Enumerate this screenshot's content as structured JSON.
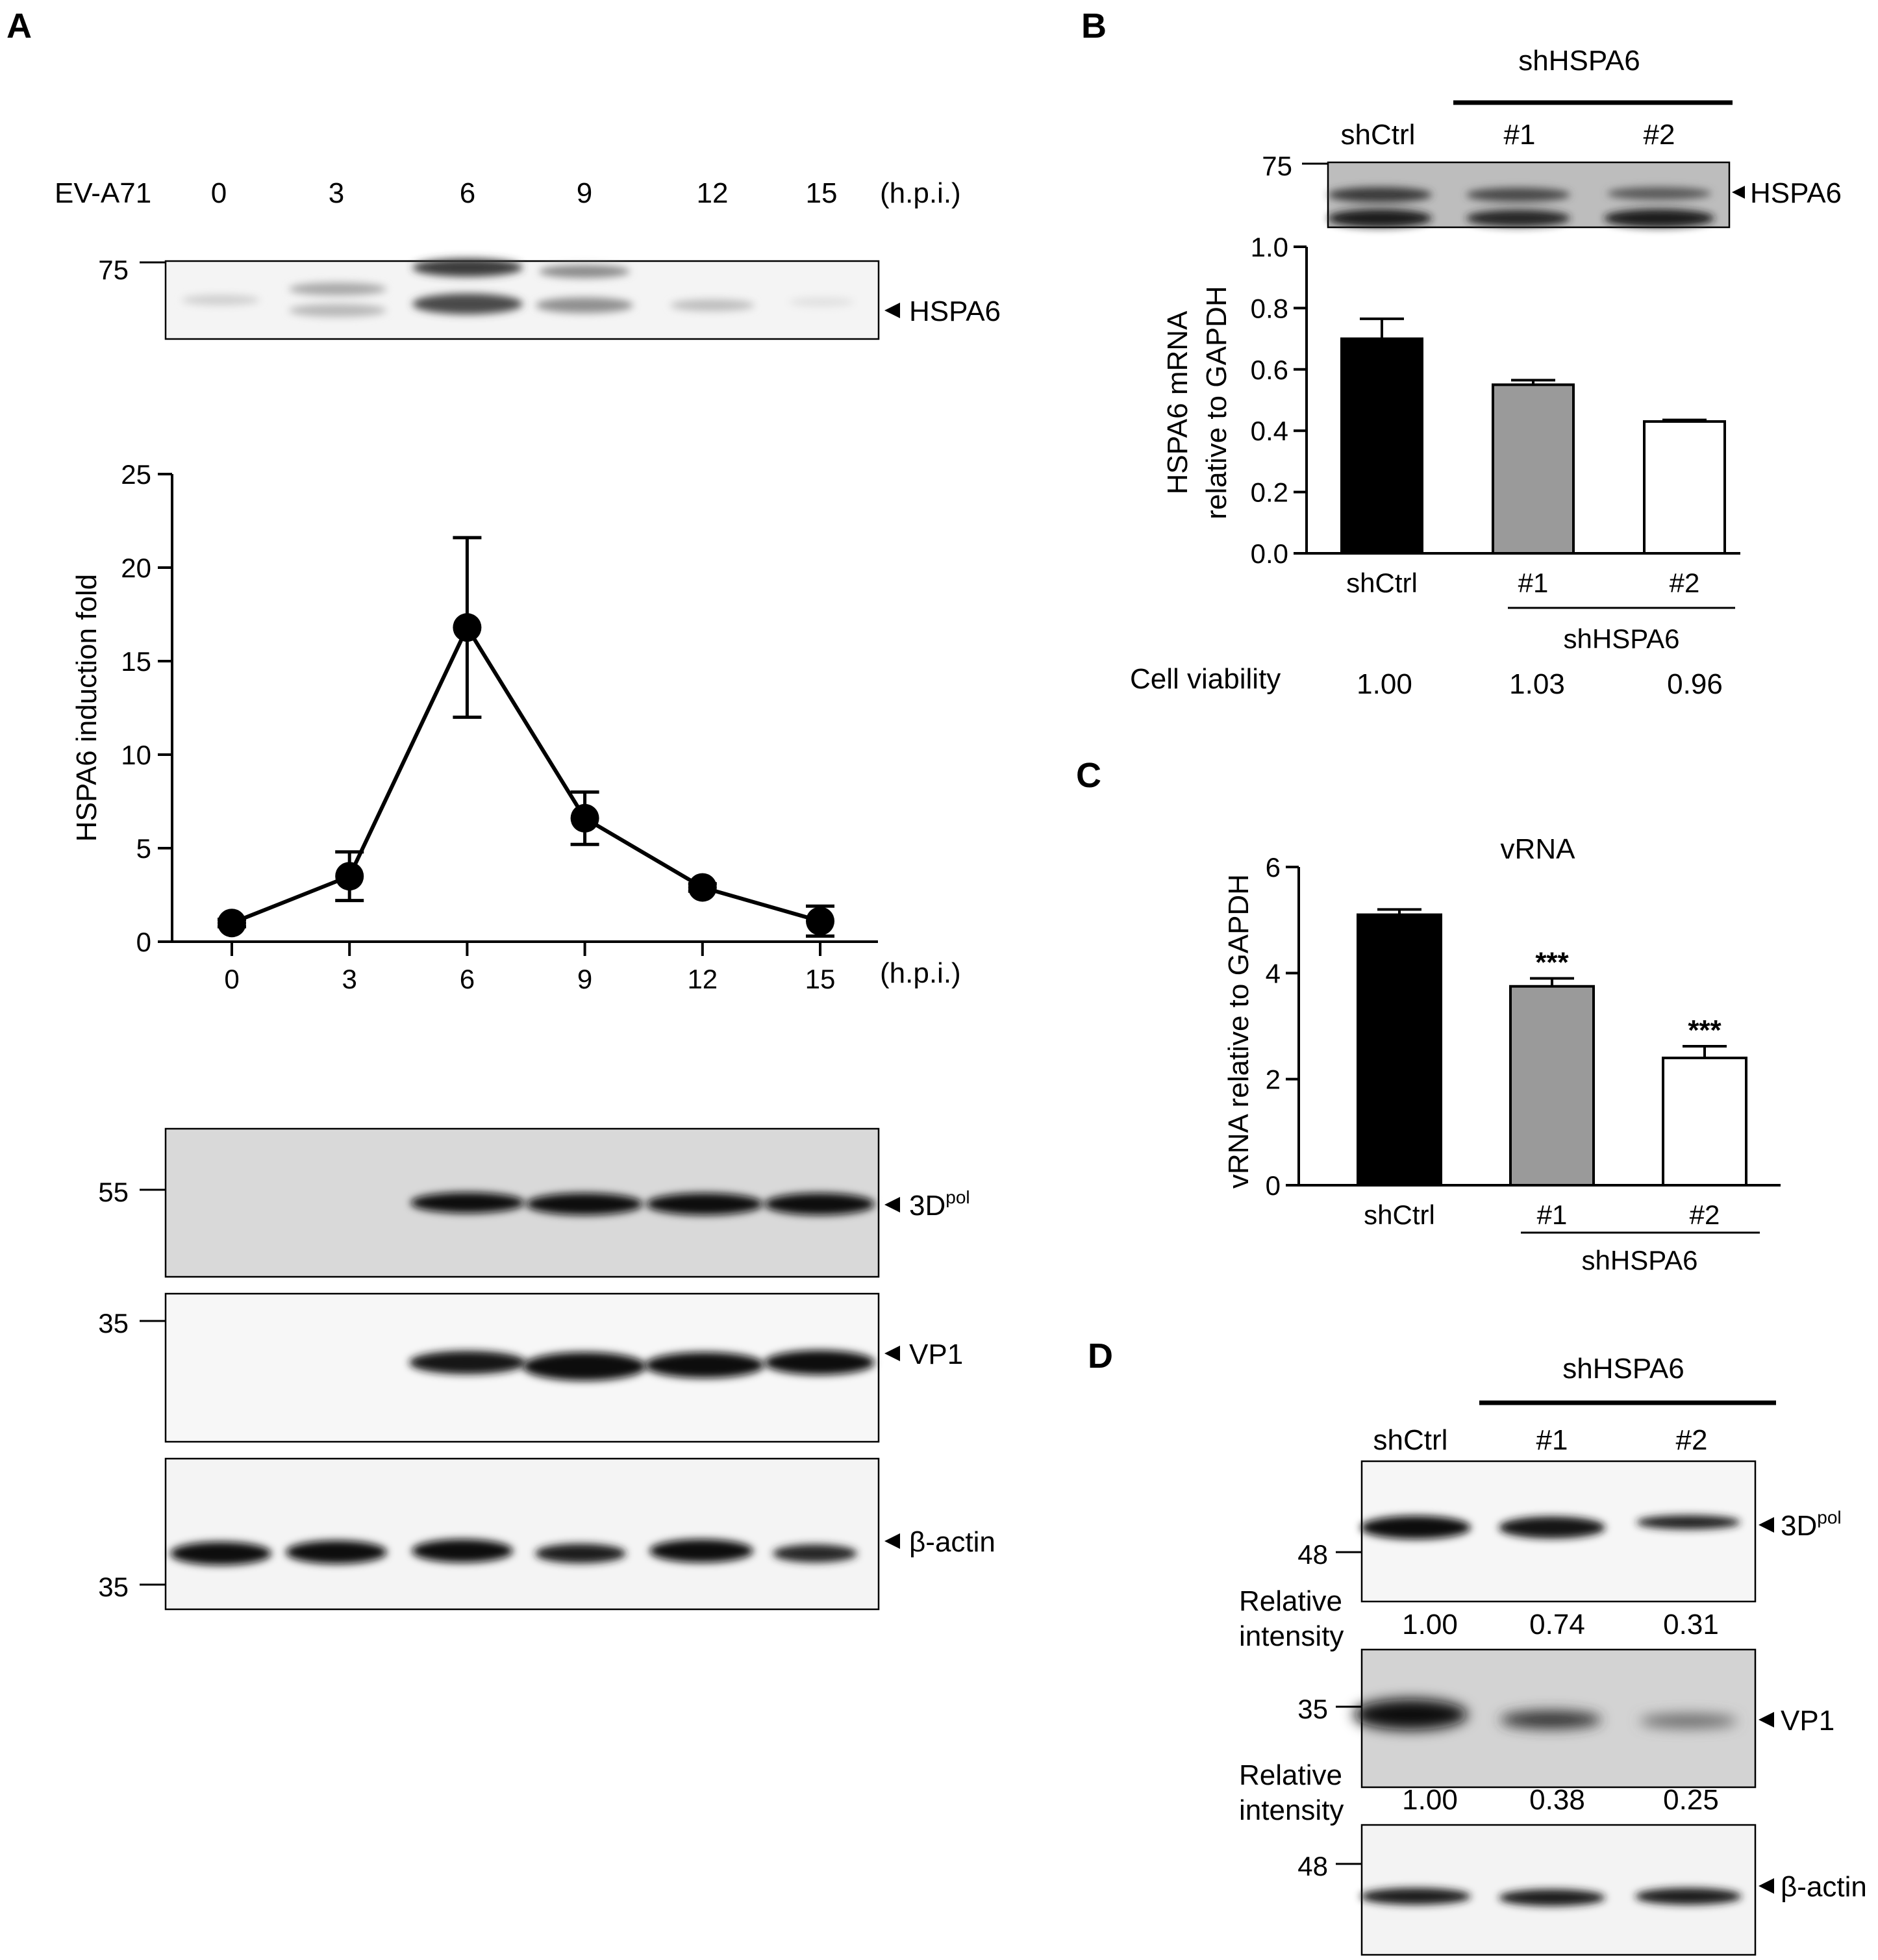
{
  "panel_labels": [
    "A",
    "B",
    "C",
    "D"
  ],
  "colors": {
    "black_bar": "#000000",
    "gray_bar": "#9a9a9a",
    "white_bar": "#ffffff",
    "blot_bg_light": "#f5f5f5",
    "blot_bg_gray": "#d6d6d6"
  },
  "panelA": {
    "virus_label": "EV-A71",
    "timepoints": [
      "0",
      "3",
      "6",
      "9",
      "12",
      "15"
    ],
    "unit": "(h.p.i.)",
    "blot_top": {
      "marker": "75",
      "protein": "HSPA6"
    },
    "blots_bottom": [
      {
        "marker": "55",
        "protein": "3D",
        "superscript": "pol"
      },
      {
        "marker": "35",
        "protein": "VP1"
      },
      {
        "marker": "35",
        "protein": "β-actin"
      }
    ]
  },
  "panelB": {
    "group_label": "shHSPA6",
    "lanes": [
      "shCtrl",
      "#1",
      "#2"
    ],
    "blot": {
      "marker": "75",
      "protein": "HSPA6"
    },
    "viability_label": "Cell viability",
    "viability_values": [
      "1.00",
      "1.03",
      "0.96"
    ]
  },
  "panelD": {
    "group_label": "shHSPA6",
    "lanes": [
      "shCtrl",
      "#1",
      "#2"
    ],
    "blots": [
      {
        "marker": "48",
        "protein": "3D",
        "superscript": "pol",
        "rel_label_1": "Relative",
        "rel_label_2": "intensity",
        "relative": [
          "1.00",
          "0.74",
          "0.31"
        ]
      },
      {
        "marker": "35",
        "protein": "VP1",
        "rel_label_1": "Relative",
        "rel_label_2": "intensity",
        "relative": [
          "1.00",
          "0.38",
          "0.25"
        ]
      },
      {
        "marker": "48",
        "protein": "β-actin"
      }
    ]
  },
  "chart_data": [
    {
      "panel": "A",
      "type": "line",
      "x": [
        0,
        3,
        6,
        9,
        12,
        15
      ],
      "y": [
        1.0,
        3.5,
        16.8,
        6.6,
        2.9,
        1.1
      ],
      "error": [
        0.2,
        1.3,
        4.8,
        1.4,
        0.2,
        0.8
      ],
      "ylabel": "HSPA6 induction fold",
      "xunit": "(h.p.i.)",
      "ylim": [
        0,
        25
      ],
      "yticks": [
        "0",
        "5",
        "10",
        "15",
        "20",
        "25"
      ],
      "xticks": [
        "0",
        "3",
        "6",
        "9",
        "12",
        "15"
      ]
    },
    {
      "panel": "B",
      "type": "bar",
      "categories": [
        "shCtrl",
        "#1",
        "#2"
      ],
      "values": [
        0.7,
        0.55,
        0.43
      ],
      "error": [
        0.065,
        0.015,
        0.005
      ],
      "ylabel_line1": "HSPA6 mRNA",
      "ylabel_line2": "relative to GAPDH",
      "ylim": [
        0,
        1.0
      ],
      "yticks": [
        "0.0",
        "0.2",
        "0.4",
        "0.6",
        "0.8",
        "1.0"
      ],
      "group_label": "shHSPA6"
    },
    {
      "panel": "C",
      "type": "bar",
      "title": "vRNA",
      "categories": [
        "shCtrl",
        "#1",
        "#2"
      ],
      "values": [
        5.1,
        3.75,
        2.4
      ],
      "error": [
        0.1,
        0.15,
        0.22
      ],
      "significance": [
        "",
        "***",
        "***"
      ],
      "ylabel": "vRNA relative to GAPDH",
      "ylim": [
        0,
        6
      ],
      "yticks": [
        "0",
        "2",
        "4",
        "6"
      ],
      "group_label": "shHSPA6"
    }
  ]
}
